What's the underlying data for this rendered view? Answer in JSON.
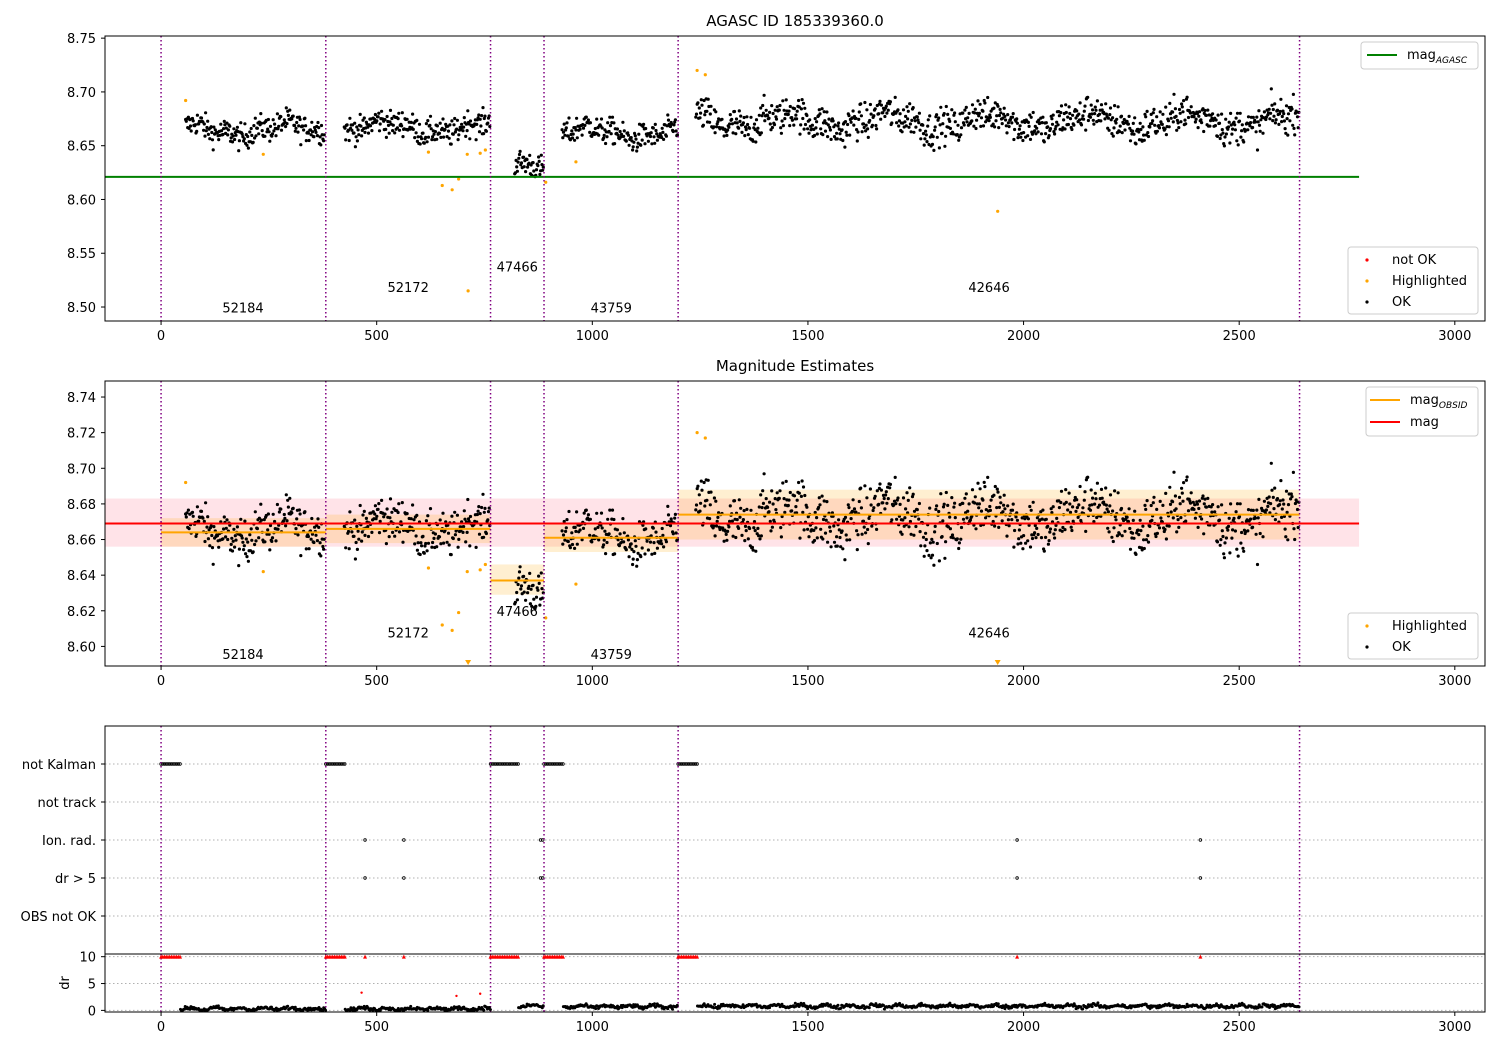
{
  "colors": {
    "ok": "#000000",
    "highlighted": "#ffa500",
    "not_ok": "#ff0000",
    "mag_agasc": "#008000",
    "mag": "#ff0000",
    "mag_obsid": "#ffa500",
    "obs_boundary": "#800080"
  },
  "chart_data": [
    {
      "id": "top",
      "type": "scatter",
      "title": "AGASC ID 185339360.0",
      "xlabel": "",
      "ylabel": "",
      "xlim": [
        -130,
        3070
      ],
      "ylim": [
        8.487,
        8.752
      ],
      "xticks": [
        "0",
        "500",
        "1000",
        "1500",
        "2000",
        "2500",
        "3000"
      ],
      "yticks": [
        "8.50",
        "8.55",
        "8.60",
        "8.65",
        "8.70",
        "8.75"
      ],
      "grid": false,
      "legend_upper": {
        "placement": "top-right",
        "entries": [
          {
            "label": "mag",
            "sub": "AGASC",
            "color": "#008000"
          }
        ]
      },
      "legend_lower": {
        "placement": "bottom-right",
        "entries": [
          {
            "label": "not OK",
            "color": "#ff0000"
          },
          {
            "label": "Highlighted",
            "color": "#ffa500"
          },
          {
            "label": "OK",
            "color": "#000000"
          }
        ]
      },
      "mag_agasc": 8.621,
      "obs_boundaries": [
        0,
        382,
        764,
        888,
        1199,
        2640
      ],
      "obsid_labels": [
        {
          "text": "52184",
          "x": 190,
          "y": 8.495
        },
        {
          "text": "52172",
          "x": 573,
          "y": 8.514
        },
        {
          "text": "47466",
          "x": 826,
          "y": 8.533
        },
        {
          "text": "43759",
          "x": 1044,
          "y": 8.495
        },
        {
          "text": "42646",
          "x": 1920,
          "y": 8.514
        }
      ],
      "highlighted_points": [
        [
          57,
          8.692
        ],
        [
          237,
          8.642
        ],
        [
          620,
          8.644
        ],
        [
          652,
          8.613
        ],
        [
          675,
          8.609
        ],
        [
          690,
          8.619
        ],
        [
          710,
          8.642
        ],
        [
          712,
          8.515
        ],
        [
          740,
          8.643
        ],
        [
          752,
          8.646
        ],
        [
          892,
          8.616
        ],
        [
          962,
          8.635
        ],
        [
          1243,
          8.72
        ],
        [
          1262,
          8.716
        ],
        [
          1940,
          8.589
        ]
      ],
      "ok_segments": [
        {
          "x": [
            57,
            380
          ],
          "level": 8.665,
          "spread": 0.012
        },
        {
          "x": [
            425,
            764
          ],
          "level": 8.667,
          "spread": 0.012
        },
        {
          "x": [
            820,
            888
          ],
          "level": 8.636,
          "spread": 0.012
        },
        {
          "x": [
            930,
            1199
          ],
          "level": 8.662,
          "spread": 0.012
        },
        {
          "x": [
            1240,
            2640
          ],
          "level": 8.673,
          "spread": 0.016
        }
      ]
    },
    {
      "id": "middle",
      "type": "scatter",
      "title": "Magnitude Estimates",
      "xlabel": "",
      "ylabel": "",
      "xlim": [
        -130,
        3070
      ],
      "ylim": [
        8.589,
        8.749
      ],
      "xticks": [
        "0",
        "500",
        "1000",
        "1500",
        "2000",
        "2500",
        "3000"
      ],
      "yticks": [
        "8.60",
        "8.62",
        "8.64",
        "8.66",
        "8.68",
        "8.70",
        "8.72",
        "8.74"
      ],
      "grid": false,
      "legend_upper": {
        "placement": "top-right",
        "entries": [
          {
            "label": "mag",
            "sub": "OBSID",
            "color": "#ffa500"
          },
          {
            "label": "mag",
            "color": "#ff0000"
          }
        ]
      },
      "legend_lower": {
        "placement": "bottom-right",
        "entries": [
          {
            "label": "Highlighted",
            "color": "#ffa500"
          },
          {
            "label": "OK",
            "color": "#000000"
          }
        ]
      },
      "mag": 8.669,
      "mag_band": [
        8.656,
        8.683
      ],
      "mag_obsid": [
        {
          "x": [
            0,
            382
          ],
          "value": 8.664,
          "band": [
            8.656,
            8.672
          ]
        },
        {
          "x": [
            382,
            764
          ],
          "value": 8.666,
          "band": [
            8.658,
            8.674
          ]
        },
        {
          "x": [
            764,
            888
          ],
          "value": 8.637,
          "band": [
            8.629,
            8.646
          ]
        },
        {
          "x": [
            888,
            1199
          ],
          "value": 8.661,
          "band": [
            8.653,
            8.669
          ]
        },
        {
          "x": [
            1199,
            2640
          ],
          "value": 8.674,
          "band": [
            8.66,
            8.688
          ]
        }
      ],
      "obs_boundaries": [
        0,
        382,
        764,
        888,
        1199,
        2640
      ],
      "obsid_labels": [
        {
          "text": "52184",
          "x": 190,
          "y": 8.593
        },
        {
          "text": "52172",
          "x": 573,
          "y": 8.605
        },
        {
          "text": "47466",
          "x": 826,
          "y": 8.617
        },
        {
          "text": "43759",
          "x": 1044,
          "y": 8.593
        },
        {
          "text": "42646",
          "x": 1920,
          "y": 8.605
        }
      ],
      "highlighted_points": [
        [
          57,
          8.692
        ],
        [
          237,
          8.642
        ],
        [
          620,
          8.644
        ],
        [
          652,
          8.612
        ],
        [
          675,
          8.609
        ],
        [
          690,
          8.619
        ],
        [
          710,
          8.642
        ],
        [
          740,
          8.643
        ],
        [
          752,
          8.646
        ],
        [
          892,
          8.616
        ],
        [
          962,
          8.635
        ],
        [
          1243,
          8.72
        ],
        [
          1262,
          8.717
        ]
      ],
      "out_of_range_markers": [
        712,
        1940
      ]
    },
    {
      "id": "flags",
      "type": "scatter",
      "title": "",
      "xlim": [
        -130,
        3070
      ],
      "yticks": [
        "not Kalman",
        "not track",
        "Ion. rad.",
        "dr > 5",
        "OBS not OK"
      ],
      "grid": true,
      "not_kalman_ranges": [
        [
          0,
          45
        ],
        [
          382,
          427
        ],
        [
          764,
          829
        ],
        [
          888,
          933
        ],
        [
          1199,
          1244
        ]
      ],
      "ion_rad_x": [
        473,
        563,
        880,
        885,
        1985,
        2410
      ],
      "dr5_x": [
        473,
        563,
        880,
        885,
        1985,
        2410
      ]
    },
    {
      "id": "dr",
      "type": "scatter",
      "xlim": [
        -130,
        3070
      ],
      "ylabel": "dr",
      "ylim": [
        -0.3,
        10.5
      ],
      "yticks": [
        "0",
        "5",
        "10"
      ],
      "xticks": [
        "0",
        "500",
        "1000",
        "1500",
        "2000",
        "2500",
        "3000"
      ],
      "grid": true,
      "clipped_ranges": [
        [
          0,
          45
        ],
        [
          382,
          427
        ],
        [
          764,
          829
        ],
        [
          888,
          933
        ],
        [
          1199,
          1244
        ]
      ],
      "clipped_x": [
        473,
        563,
        1985,
        2410
      ],
      "orange_points": [
        [
          465,
          3.3
        ],
        [
          685,
          2.7
        ],
        [
          740,
          3.1
        ]
      ],
      "dr_segments": [
        {
          "x": [
            45,
            382
          ],
          "level": 0.3
        },
        {
          "x": [
            427,
            764
          ],
          "level": 0.3
        },
        {
          "x": [
            829,
            888
          ],
          "level": 0.8
        },
        {
          "x": [
            933,
            1199
          ],
          "level": 0.7
        },
        {
          "x": [
            1244,
            2640
          ],
          "level": 0.8
        }
      ]
    }
  ]
}
